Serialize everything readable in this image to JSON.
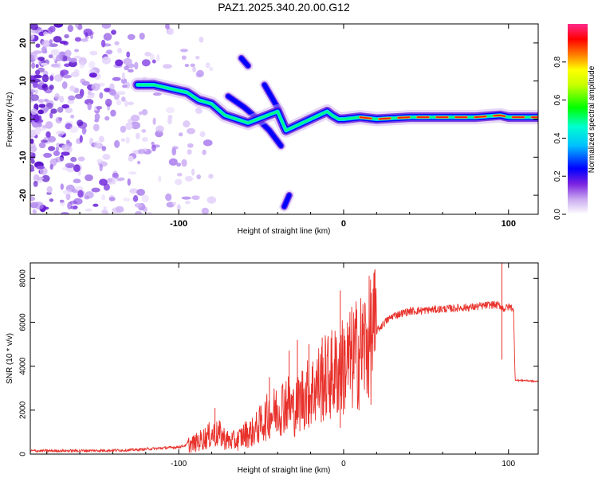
{
  "title": "PAZ1.2025.340.20.00.G12",
  "chart_data": [
    {
      "type": "heatmap",
      "name": "spectrogram",
      "xlabel": "Height of straight line (km)",
      "ylabel": "Frequency (Hz)",
      "xlim": [
        -190,
        118
      ],
      "ylim": [
        -25,
        25
      ],
      "xticks": [
        -100,
        0,
        100
      ],
      "xtick_labels": [
        "-100",
        "0",
        "100"
      ],
      "yticks": [
        -20,
        -10,
        0,
        10,
        20
      ],
      "ytick_labels": [
        "-20",
        "-10",
        "0",
        "10",
        "20"
      ],
      "colorbar": {
        "label": "Normalized spectral amplitude",
        "range": [
          0,
          1
        ],
        "ticks": [
          0.0,
          0.2,
          0.4,
          0.6,
          0.8
        ],
        "tick_labels": [
          "0.0",
          "0.2",
          "0.4",
          "0.6",
          "0.8"
        ],
        "colormap": "hsv-like: white/purple low, blue, cyan, green, yellow, red, magenta high"
      },
      "ridge": {
        "description": "main spectral ridge frequency vs height",
        "x": [
          -125,
          -115,
          -105,
          -95,
          -88,
          -80,
          -72,
          -65,
          -58,
          -52,
          -46,
          -40,
          -35,
          -30,
          -25,
          -20,
          -15,
          -10,
          -7,
          -3,
          0,
          10,
          20,
          40,
          60,
          80,
          95,
          100,
          110,
          118
        ],
        "y": [
          9,
          9,
          8,
          7,
          5,
          4,
          1,
          0,
          -1,
          0,
          1,
          2,
          -3,
          -2,
          -1,
          0,
          1,
          2,
          1,
          0,
          0,
          0.5,
          0,
          0.5,
          0.5,
          0.5,
          1,
          0.5,
          0.5,
          0.5
        ]
      },
      "secondary_branches": [
        {
          "x": [
            -62,
            -58
          ],
          "y": [
            16,
            14
          ]
        },
        {
          "x": [
            -48,
            -44,
            -40,
            -36
          ],
          "y": [
            9,
            6,
            3,
            -2
          ]
        },
        {
          "x": [
            -70,
            -60,
            -52,
            -45,
            -38
          ],
          "y": [
            6,
            3,
            0,
            -3,
            -7
          ]
        },
        {
          "x": [
            -33,
            -36
          ],
          "y": [
            -20,
            -23
          ]
        }
      ]
    },
    {
      "type": "line",
      "name": "snr",
      "xlabel": "Height of straight line (km)",
      "ylabel": "SNR (10 * v/v)",
      "color": "#e8312b",
      "xlim": [
        -190,
        118
      ],
      "ylim": [
        0,
        8700
      ],
      "xticks": [
        -100,
        0,
        100
      ],
      "xtick_labels": [
        "-100",
        "0",
        "100"
      ],
      "yticks": [
        0,
        2000,
        4000,
        6000,
        8000
      ],
      "ytick_labels": [
        "0",
        "2000",
        "4000",
        "6000",
        "8000"
      ],
      "x": [
        -190,
        -170,
        -150,
        -130,
        -115,
        -100,
        -90,
        -85,
        -80,
        -75,
        -70,
        -65,
        -60,
        -55,
        -50,
        -45,
        -40,
        -35,
        -30,
        -25,
        -20,
        -15,
        -10,
        -5,
        0,
        5,
        10,
        15,
        20,
        25,
        30,
        40,
        50,
        60,
        70,
        80,
        90,
        95,
        97,
        100,
        103,
        104,
        106,
        110,
        118
      ],
      "y": [
        150,
        150,
        160,
        180,
        250,
        320,
        500,
        700,
        900,
        900,
        600,
        600,
        900,
        1000,
        1400,
        1800,
        2000,
        2400,
        2000,
        2600,
        2800,
        3200,
        3500,
        3700,
        4000,
        4300,
        4700,
        5100,
        5600,
        6000,
        6300,
        6500,
        6550,
        6600,
        6650,
        6700,
        6800,
        6750,
        6600,
        6700,
        6650,
        3400,
        3350,
        3350,
        3300
      ],
      "spikes": [
        {
          "x": -78,
          "y": 2100
        },
        {
          "x": -45,
          "y": 3500
        },
        {
          "x": -33,
          "y": 4700
        },
        {
          "x": -28,
          "y": 5200
        },
        {
          "x": -21,
          "y": 5000
        },
        {
          "x": -13,
          "y": 5300
        },
        {
          "x": -2,
          "y": 7450
        },
        {
          "x": -2,
          "y": 1200
        },
        {
          "x": 96,
          "y": 8700
        },
        {
          "x": 96,
          "y": 4300
        }
      ]
    }
  ]
}
